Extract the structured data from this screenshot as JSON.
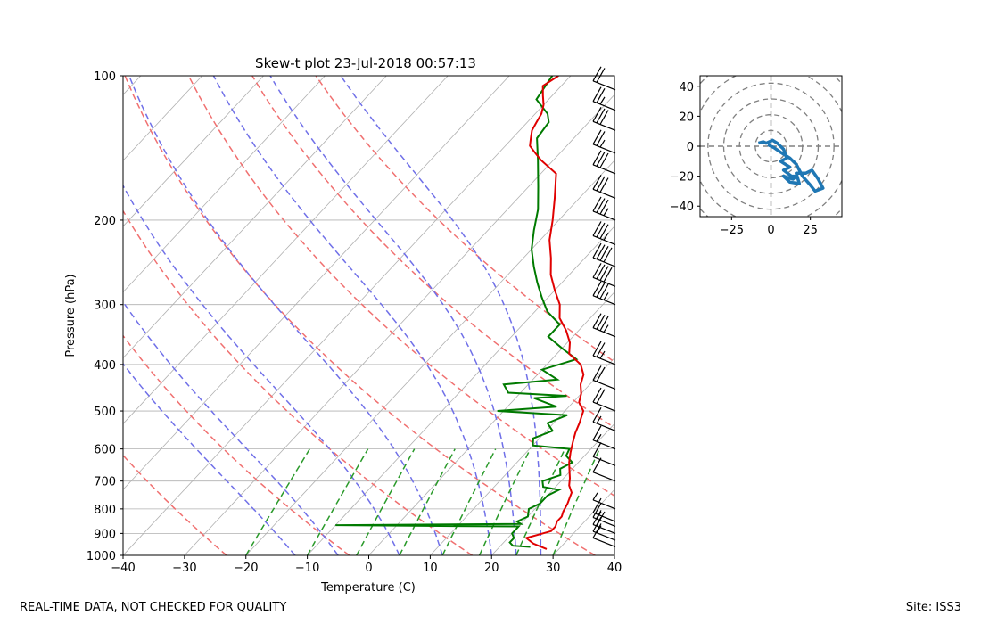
{
  "footer": {
    "left": "REAL-TIME DATA, NOT CHECKED FOR QUALITY",
    "right": "Site: ISS3"
  },
  "chart_data": [
    {
      "type": "line",
      "name": "skew-t",
      "title": "Skew-t plot 23-Jul-2018 00:57:13",
      "xlabel": "Temperature (C)",
      "ylabel": "Pressure (hPa)",
      "xlim": [
        -40,
        40
      ],
      "ylim": [
        1000,
        100
      ],
      "x_ticks": [
        -40,
        -30,
        -20,
        -10,
        0,
        10,
        20,
        30,
        40
      ],
      "x_tick_labels": [
        "−40",
        "−30",
        "−20",
        "−10",
        "0",
        "10",
        "20",
        "30",
        "40"
      ],
      "y_ticks": [
        1000,
        900,
        800,
        700,
        600,
        500,
        400,
        300,
        200,
        100
      ],
      "y_tick_labels": [
        "1000",
        "900",
        "800",
        "700",
        "600",
        "500",
        "400",
        "300",
        "200",
        "100"
      ],
      "colors": {
        "temperature": "#e00000",
        "dewpoint": "#007a00",
        "dry_adiabat": "#f07070",
        "moist_adiabat": "#7070e8",
        "mixing_ratio": "#2a9a2a",
        "grid": "#b0b0b0"
      },
      "series": [
        {
          "name": "temperature",
          "points": [
            [
              28,
              970
            ],
            [
              25,
              945
            ],
            [
              23,
              920
            ],
            [
              24.5,
              905
            ],
            [
              26,
              890
            ],
            [
              26,
              870
            ],
            [
              25.5,
              850
            ],
            [
              25.5,
              830
            ],
            [
              25,
              810
            ],
            [
              24.5,
              780
            ],
            [
              24,
              760
            ],
            [
              23.5,
              740
            ],
            [
              22,
              715
            ],
            [
              21,
              690
            ],
            [
              20,
              670
            ],
            [
              18.5,
              640
            ],
            [
              17.2,
              610
            ],
            [
              16,
              580
            ],
            [
              15,
              555
            ],
            [
              14.2,
              530
            ],
            [
              13,
              500
            ],
            [
              11,
              480
            ],
            [
              10,
              460
            ],
            [
              8.5,
              440
            ],
            [
              7.5,
              420
            ],
            [
              5.5,
              400
            ],
            [
              2,
              380
            ],
            [
              0.4,
              360
            ],
            [
              -2,
              340
            ],
            [
              -5,
              320
            ],
            [
              -7,
              300
            ],
            [
              -10,
              280
            ],
            [
              -13,
              260
            ],
            [
              -15.5,
              240
            ],
            [
              -18.5,
              220
            ],
            [
              -21,
              200
            ],
            [
              -24,
              180
            ],
            [
              -27.5,
              160
            ],
            [
              -32,
              150
            ],
            [
              -34,
              145
            ],
            [
              -36,
              140
            ],
            [
              -37,
              135
            ],
            [
              -38,
              130
            ],
            [
              -38.5,
              125
            ],
            [
              -39,
              120
            ],
            [
              -40,
              115
            ],
            [
              -41.5,
              110
            ],
            [
              -43,
              105
            ],
            [
              -42,
              100
            ]
          ]
        },
        {
          "name": "dewpoint",
          "points": [
            [
              25,
              960
            ],
            [
              22,
              955
            ],
            [
              21,
              940
            ],
            [
              21,
              920
            ],
            [
              20,
              900
            ],
            [
              20,
              870
            ],
            [
              5,
              868
            ],
            [
              -10,
              865
            ],
            [
              20,
              860
            ],
            [
              19,
              850
            ],
            [
              20,
              830
            ],
            [
              19,
              800
            ],
            [
              20,
              780
            ],
            [
              20,
              750
            ],
            [
              21,
              730
            ],
            [
              18,
              720
            ],
            [
              17,
              700
            ],
            [
              19,
              680
            ],
            [
              18,
              660
            ],
            [
              19,
              640
            ],
            [
              17,
              620
            ],
            [
              16.5,
              600
            ],
            [
              10,
              590
            ],
            [
              9,
              570
            ],
            [
              11,
              550
            ],
            [
              9,
              530
            ],
            [
              11,
              510
            ],
            [
              -1,
              500
            ],
            [
              8,
              490
            ],
            [
              3,
              470
            ],
            [
              8,
              465
            ],
            [
              -2,
              458
            ],
            [
              -4,
              440
            ],
            [
              4,
              430
            ],
            [
              0,
              410
            ],
            [
              4,
              390
            ],
            [
              0,
              370
            ],
            [
              -4,
              350
            ],
            [
              -4,
              330
            ],
            [
              -8,
              310
            ],
            [
              -11,
              290
            ],
            [
              -14,
              270
            ],
            [
              -17,
              250
            ],
            [
              -20,
              230
            ],
            [
              -22.5,
              210
            ],
            [
              -25,
              190
            ],
            [
              -28.5,
              170
            ],
            [
              -32.5,
              150
            ],
            [
              -36,
              135
            ],
            [
              -36.5,
              125
            ],
            [
              -38,
              120
            ],
            [
              -42,
              112
            ],
            [
              -43,
              100
            ]
          ]
        }
      ],
      "dry_adiabats_theta_K": [
        250,
        270,
        290,
        310,
        330,
        350,
        370
      ],
      "moist_adiabats_surface_C": [
        -12,
        -5,
        5,
        12,
        20,
        24,
        28
      ],
      "mixing_ratio_lines_surface_C": [
        -20,
        -10,
        -2,
        5,
        12,
        18,
        24,
        30
      ],
      "wind_barbs": [
        {
          "p": 960,
          "speed_kt": 10
        },
        {
          "p": 930,
          "speed_kt": 15
        },
        {
          "p": 900,
          "speed_kt": 20
        },
        {
          "p": 870,
          "speed_kt": 15
        },
        {
          "p": 850,
          "speed_kt": 10
        },
        {
          "p": 800,
          "speed_kt": 5
        },
        {
          "p": 700,
          "speed_kt": 10
        },
        {
          "p": 650,
          "speed_kt": 10
        },
        {
          "p": 600,
          "speed_kt": 15
        },
        {
          "p": 550,
          "speed_kt": 15
        },
        {
          "p": 500,
          "speed_kt": 20
        },
        {
          "p": 450,
          "speed_kt": 20
        },
        {
          "p": 400,
          "speed_kt": 25
        },
        {
          "p": 350,
          "speed_kt": 35
        },
        {
          "p": 300,
          "speed_kt": 35
        },
        {
          "p": 275,
          "speed_kt": 40
        },
        {
          "p": 250,
          "speed_kt": 40
        },
        {
          "p": 225,
          "speed_kt": 35
        },
        {
          "p": 200,
          "speed_kt": 35
        },
        {
          "p": 180,
          "speed_kt": 30
        },
        {
          "p": 160,
          "speed_kt": 30
        },
        {
          "p": 145,
          "speed_kt": 25
        },
        {
          "p": 130,
          "speed_kt": 30
        },
        {
          "p": 118,
          "speed_kt": 25
        },
        {
          "p": 107,
          "speed_kt": 20
        }
      ]
    },
    {
      "type": "line",
      "name": "hodograph",
      "xlim": [
        -45,
        45
      ],
      "ylim": [
        -47,
        47
      ],
      "x_ticks": [
        -25,
        0,
        25
      ],
      "x_tick_labels": [
        "−25",
        "0",
        "25"
      ],
      "y_ticks": [
        40,
        20,
        0,
        -20,
        -40
      ],
      "y_tick_labels": [
        "40",
        "20",
        "0",
        "−20",
        "−40"
      ],
      "ring_radii": [
        10,
        20,
        30,
        40,
        50,
        60
      ],
      "colors": {
        "line": "#1f77b4",
        "rings": "#808080"
      },
      "points": [
        [
          -8,
          2
        ],
        [
          -5,
          3
        ],
        [
          -3,
          2
        ],
        [
          1,
          4
        ],
        [
          4,
          2
        ],
        [
          8,
          -2
        ],
        [
          10,
          -8
        ],
        [
          6,
          -10
        ],
        [
          12,
          -14
        ],
        [
          8,
          -16
        ],
        [
          13,
          -20
        ],
        [
          16,
          -20
        ],
        [
          14,
          -22
        ],
        [
          8,
          -20
        ],
        [
          12,
          -24
        ],
        [
          18,
          -25
        ],
        [
          16,
          -18
        ],
        [
          22,
          -18
        ],
        [
          26,
          -16
        ],
        [
          30,
          -22
        ],
        [
          33,
          -28
        ],
        [
          28,
          -30
        ],
        [
          25,
          -26
        ],
        [
          20,
          -20
        ],
        [
          16,
          -12
        ],
        [
          12,
          -8
        ],
        [
          6,
          -4
        ],
        [
          2,
          -1
        ],
        [
          -2,
          1
        ]
      ]
    }
  ]
}
